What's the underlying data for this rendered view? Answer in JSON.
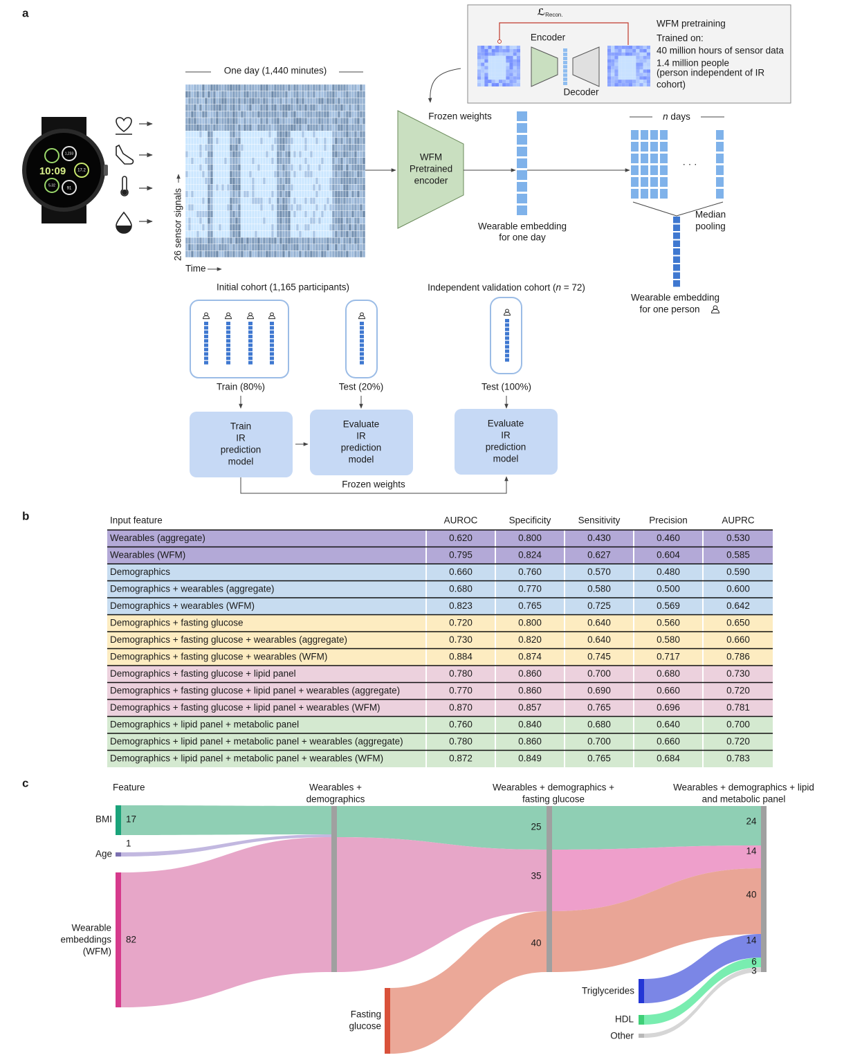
{
  "panel_labels": {
    "a": "a",
    "b": "b",
    "c": "c"
  },
  "watch": {
    "time": "10:09",
    "steps": "1,233",
    "temp": "17.2",
    "left": "5.32",
    "hr": "91"
  },
  "pretraining": {
    "loss": "ℒ",
    "loss_sub": "Recon.",
    "encoder": "Encoder",
    "decoder": "Decoder",
    "title": "WFM pretraining",
    "lines": [
      "Trained on:",
      "40 million hours of sensor data",
      "1.4 million people",
      "(person independent of IR",
      "cohort)"
    ]
  },
  "sensor_day": {
    "title": "One day (1,440 minutes)",
    "y_label": "26 sensor signals",
    "x_label": "Time"
  },
  "encoder": {
    "frozen": "Frozen weights",
    "label": [
      "WFM",
      "Pretrained",
      "encoder"
    ]
  },
  "embedding_day": [
    "Wearable embedding",
    "for one day"
  ],
  "n_days": {
    "n": "n",
    "unit": "days"
  },
  "ellipsis": "· · ·",
  "pooling": [
    "Median",
    "pooling"
  ],
  "embedding_person": [
    "Wearable embedding",
    "for one person"
  ],
  "cohorts": {
    "initial": "Initial cohort (1,165 participants)",
    "validation": {
      "prefix": "Independent validation cohort (",
      "n": "n",
      "suffix": " = 72)"
    }
  },
  "splits": [
    "Train (80%)",
    "Test (20%)",
    "Test (100%)"
  ],
  "models": [
    [
      "Train",
      "IR",
      "prediction",
      "model"
    ],
    [
      "Evaluate",
      "IR",
      "prediction",
      "model"
    ],
    [
      "Evaluate",
      "IR",
      "prediction",
      "model"
    ]
  ],
  "frozen_bottom": "Frozen weights",
  "table": {
    "header": [
      "Input feature",
      "AUROC",
      "Specificity",
      "Sensitivity",
      "Precision",
      "AUPRC"
    ],
    "rows": [
      [
        "Wearables (aggregate)",
        "0.620",
        "0.800",
        "0.430",
        "0.460",
        "0.530"
      ],
      [
        "Wearables (WFM)",
        "0.795",
        "0.824",
        "0.627",
        "0.604",
        "0.585"
      ],
      [
        "Demographics",
        "0.660",
        "0.760",
        "0.570",
        "0.480",
        "0.590"
      ],
      [
        "Demographics + wearables (aggregate)",
        "0.680",
        "0.770",
        "0.580",
        "0.500",
        "0.600"
      ],
      [
        "Demographics + wearables (WFM)",
        "0.823",
        "0.765",
        "0.725",
        "0.569",
        "0.642"
      ],
      [
        "Demographics + fasting glucose",
        "0.720",
        "0.800",
        "0.640",
        "0.560",
        "0.650"
      ],
      [
        "Demographics + fasting glucose + wearables (aggregate)",
        "0.730",
        "0.820",
        "0.640",
        "0.580",
        "0.660"
      ],
      [
        "Demographics + fasting glucose + wearables (WFM)",
        "0.884",
        "0.874",
        "0.745",
        "0.717",
        "0.786"
      ],
      [
        "Demographics + fasting glucose + lipid panel",
        "0.780",
        "0.860",
        "0.700",
        "0.680",
        "0.730"
      ],
      [
        "Demographics + fasting glucose + lipid panel + wearables (aggregate)",
        "0.770",
        "0.860",
        "0.690",
        "0.660",
        "0.720"
      ],
      [
        "Demographics + fasting glucose + lipid panel + wearables (WFM)",
        "0.870",
        "0.857",
        "0.765",
        "0.696",
        "0.781"
      ],
      [
        "Demographics + lipid panel + metabolic panel",
        "0.760",
        "0.840",
        "0.680",
        "0.640",
        "0.700"
      ],
      [
        "Demographics + lipid panel + metabolic panel + wearables (aggregate)",
        "0.780",
        "0.860",
        "0.700",
        "0.660",
        "0.720"
      ],
      [
        "Demographics + lipid panel + metabolic panel + wearables (WFM)",
        "0.872",
        "0.849",
        "0.765",
        "0.684",
        "0.783"
      ]
    ]
  },
  "sankey": {
    "header": "Feature",
    "columns": [
      [
        "Wearables +",
        "demographics"
      ],
      [
        "Wearables + demographics +",
        "fasting glucose"
      ],
      [
        "Wearables + demographics + lipid",
        "and metabolic panel"
      ]
    ],
    "nodes": [
      {
        "label": [
          "BMI"
        ],
        "value": 17
      },
      {
        "label": [
          "Age"
        ],
        "value": 1
      },
      {
        "label": [
          "Wearable",
          "embeddings",
          "(WFM)"
        ],
        "value": 82
      },
      {
        "label": [
          "Fasting",
          "glucose"
        ]
      },
      {
        "label": [
          "Triglycerides"
        ]
      },
      {
        "label": [
          "HDL"
        ]
      },
      {
        "label": [
          "Other"
        ]
      }
    ],
    "stage2": [
      25,
      35,
      40
    ],
    "stage3": [
      24,
      14,
      40,
      14,
      6,
      3
    ]
  }
}
